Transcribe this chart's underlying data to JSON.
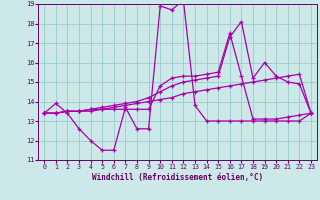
{
  "xlabel": "Windchill (Refroidissement éolien,°C)",
  "bg_color": "#cce8e8",
  "grid_color": "#99cccc",
  "line_color": "#aa00aa",
  "xlim": [
    -0.5,
    23.5
  ],
  "ylim": [
    11,
    19
  ],
  "xticks": [
    0,
    1,
    2,
    3,
    4,
    5,
    6,
    7,
    8,
    9,
    10,
    11,
    12,
    13,
    14,
    15,
    16,
    17,
    18,
    19,
    20,
    21,
    22,
    23
  ],
  "yticks": [
    11,
    12,
    13,
    14,
    15,
    16,
    17,
    18,
    19
  ],
  "series": [
    [
      13.4,
      13.9,
      13.4,
      12.6,
      12.0,
      11.5,
      11.5,
      13.7,
      12.6,
      12.6,
      18.9,
      18.7,
      19.2,
      13.8,
      13.0,
      13.0,
      13.0,
      13.0,
      13.0,
      13.0,
      13.0,
      13.0,
      13.0,
      13.4
    ],
    [
      13.4,
      13.4,
      13.5,
      13.5,
      13.6,
      13.6,
      13.7,
      13.8,
      13.9,
      14.0,
      14.1,
      14.2,
      14.4,
      14.5,
      14.6,
      14.7,
      14.8,
      14.9,
      15.0,
      15.1,
      15.2,
      15.3,
      15.4,
      13.4
    ],
    [
      13.4,
      13.4,
      13.5,
      13.5,
      13.6,
      13.7,
      13.8,
      13.9,
      14.0,
      14.2,
      14.5,
      14.8,
      15.0,
      15.1,
      15.2,
      15.3,
      17.3,
      18.1,
      15.2,
      16.0,
      15.3,
      15.0,
      14.9,
      13.4
    ],
    [
      13.4,
      13.4,
      13.5,
      13.5,
      13.5,
      13.6,
      13.6,
      13.6,
      13.6,
      13.6,
      14.8,
      15.2,
      15.3,
      15.3,
      15.4,
      15.5,
      17.5,
      15.3,
      13.1,
      13.1,
      13.1,
      13.2,
      13.3,
      13.4
    ]
  ]
}
